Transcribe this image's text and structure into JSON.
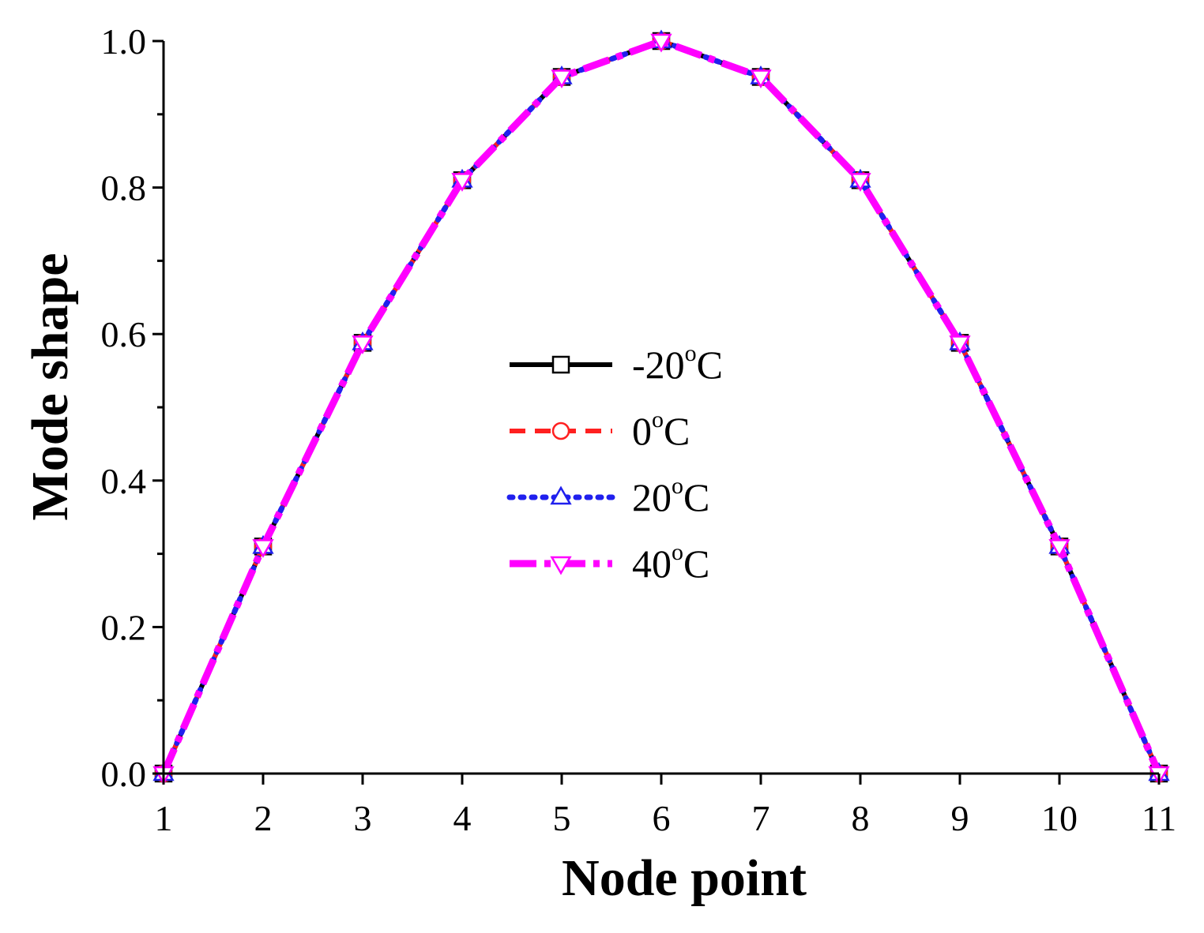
{
  "chart_data": {
    "type": "line",
    "title": "",
    "xlabel": "Node point",
    "ylabel": "Mode shape",
    "xlim": [
      1,
      11
    ],
    "ylim": [
      0,
      1.0
    ],
    "x": [
      1,
      2,
      3,
      4,
      5,
      6,
      7,
      8,
      9,
      10,
      11
    ],
    "xticks": [
      "1",
      "2",
      "3",
      "4",
      "5",
      "6",
      "7",
      "8",
      "9",
      "10",
      "11"
    ],
    "yticks": [
      "0.0",
      "0.2",
      "0.4",
      "0.6",
      "0.8",
      "1.0"
    ],
    "grid": false,
    "legend_position": "center",
    "series": [
      {
        "name": "-20",
        "unit": "C",
        "sup": "o",
        "color": "#000000",
        "marker": "square",
        "dash": "solid",
        "values": [
          0.0,
          0.31,
          0.588,
          0.81,
          0.951,
          1.0,
          0.951,
          0.81,
          0.588,
          0.31,
          0.0
        ]
      },
      {
        "name": "0",
        "unit": "C",
        "sup": "o",
        "color": "#ff2020",
        "marker": "circle",
        "dash": "dashed",
        "values": [
          0.0,
          0.31,
          0.588,
          0.81,
          0.951,
          1.0,
          0.951,
          0.81,
          0.588,
          0.31,
          0.0
        ]
      },
      {
        "name": "20",
        "unit": "C",
        "sup": "o",
        "color": "#2020ee",
        "marker": "triangle-up",
        "dash": "dotted",
        "values": [
          0.0,
          0.31,
          0.588,
          0.81,
          0.951,
          1.0,
          0.951,
          0.81,
          0.588,
          0.31,
          0.0
        ]
      },
      {
        "name": "40",
        "unit": "C",
        "sup": "o",
        "color": "#ff00ff",
        "marker": "triangle-down",
        "dash": "dashdot",
        "values": [
          0.0,
          0.31,
          0.588,
          0.81,
          0.951,
          1.0,
          0.951,
          0.81,
          0.588,
          0.31,
          0.0
        ]
      }
    ]
  }
}
